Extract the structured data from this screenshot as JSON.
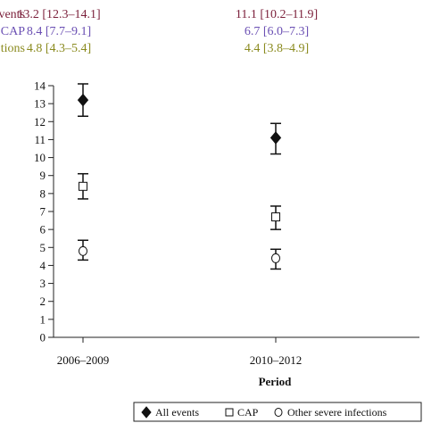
{
  "chart_data": {
    "type": "scatter",
    "title": "",
    "xlabel": "Period",
    "ylabel": "",
    "ylim": [
      0,
      14
    ],
    "yticks": [
      0,
      1,
      2,
      3,
      4,
      5,
      6,
      7,
      8,
      9,
      10,
      11,
      12,
      13,
      14
    ],
    "categories": [
      "2006–2009",
      "2010–2012"
    ],
    "series": [
      {
        "name": "All events",
        "marker": "filled-diamond",
        "color": "#7b1f3a",
        "row_label": "events",
        "values": [
          13.2,
          11.1
        ],
        "ci_low": [
          12.3,
          10.2
        ],
        "ci_high": [
          14.1,
          11.9
        ],
        "annotations": [
          "13.2 [12.3–14.1]",
          "11.1 [10.2–11.9]"
        ]
      },
      {
        "name": "CAP",
        "marker": "open-square",
        "color": "#6a4fb3",
        "row_label": "CAP",
        "values": [
          8.4,
          6.7
        ],
        "ci_low": [
          7.7,
          6.0
        ],
        "ci_high": [
          9.1,
          7.3
        ],
        "annotations": [
          "8.4 [7.7–9.1]",
          "6.7 [6.0–7.3]"
        ]
      },
      {
        "name": "Other severe infections",
        "marker": "open-circle",
        "color": "#8a8a1e",
        "row_label": "tions",
        "values": [
          4.8,
          4.4
        ],
        "ci_low": [
          4.3,
          3.8
        ],
        "ci_high": [
          5.4,
          4.9
        ],
        "annotations": [
          "4.8 [4.3–5.4]",
          "4.4 [3.8–4.9]"
        ]
      }
    ],
    "legend": {
      "position": "bottom-right"
    },
    "grid": false
  }
}
